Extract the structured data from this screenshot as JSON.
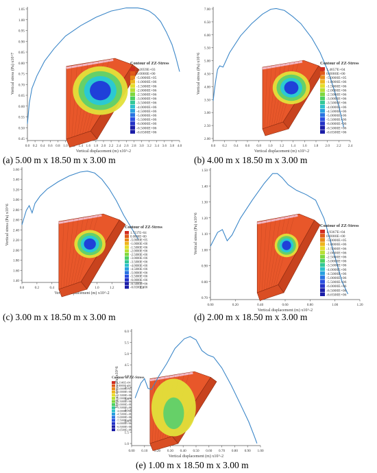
{
  "colors": {
    "curve": "#3a86c8",
    "axis": "#555555",
    "label": "#333333",
    "block_edge": "#8a2a10",
    "block_top": "#e8572a",
    "block_side": "#c8431e",
    "block_front": "#d94e24",
    "block_pink": "#f2b8c6",
    "bulb_green": "#5fd06a",
    "bulb_cyan": "#28c8d8",
    "bulb_blue": "#1f39d9",
    "bulb_yellow": "#e3e03a"
  },
  "legend_colors": [
    "#d12b1f",
    "#e05a1a",
    "#e88a1a",
    "#efb51c",
    "#e6dd2a",
    "#b8e034",
    "#7fd83e",
    "#4cd060",
    "#32c898",
    "#2ec0cc",
    "#2aa0e0",
    "#2a74e2",
    "#2a4ee0",
    "#2433c8",
    "#1c1ea8"
  ],
  "xlabel": "Vertical displacement (m) x10^-2",
  "panels": [
    {
      "caption": "(a) 5.00 m x 18.50 m x 3.00 m",
      "ylabel": "Vertical stress (Pa) x10^7",
      "legend_title": "Contour of ZZ-Stress",
      "legend_labels": [
        "2.2059E+03",
        "0.0000E+00",
        "-5.0000E+05",
        "-1.0000E+06",
        "-1.5000E+06",
        "-2.0000E+06",
        "-2.5000E+06",
        "-3.0000E+06",
        "-3.5000E+06",
        "-4.0000E+06",
        "-4.5000E+06",
        "-5.0000E+06",
        "-5.5000E+06",
        "-6.0000E+06",
        "-6.5000E+06",
        "-6.6500E+06"
      ],
      "xticks": [
        "0.0",
        "0.2",
        "0.4",
        "0.6",
        "0.8",
        "1.0",
        "1.2",
        "1.4",
        "1.6",
        "1.8",
        "2.0",
        "2.2",
        "2.4",
        "2.6",
        "2.8",
        "3.0",
        "3.2",
        "3.4",
        "3.6",
        "3.8",
        "4.0"
      ],
      "yticks": [
        "0.45",
        "0.50",
        "0.55",
        "0.60",
        "0.65",
        "0.70",
        "0.75",
        "0.80",
        "0.85",
        "0.90",
        "0.95",
        "1.00",
        "1.05"
      ]
    },
    {
      "caption": "(b) 4.00 m x 18.50 m x 3.00 m",
      "ylabel": "Vertical stress (Pa) x10^6",
      "legend_title": "Contour of ZZ-Stress",
      "legend_labels": [
        "1.4657E+04",
        "0.0000E+00",
        "-5.0000E+05",
        "-1.0000E+06",
        "-1.5000E+06",
        "-2.0000E+06",
        "-2.5000E+06",
        "-3.0000E+06",
        "-3.5000E+06",
        "-4.0000E+06",
        "-4.5000E+06",
        "-5.0000E+06",
        "-5.5000E+06",
        "-6.0000E+06",
        "-6.5000E+06",
        "-6.6500E+06"
      ],
      "xticks": [
        "0.0",
        "0.2",
        "0.4",
        "0.6",
        "0.8",
        "1.0",
        "1.2",
        "1.4",
        "1.6",
        "1.8",
        "2.0",
        "2.2",
        "2.4"
      ],
      "yticks": [
        "2.00",
        "2.50",
        "3.00",
        "3.50",
        "4.00",
        "4.50",
        "5.00",
        "5.50",
        "6.00",
        "6.50",
        "7.00"
      ]
    },
    {
      "caption": "(c) 3.00 m x 18.50 m x 3.00 m",
      "ylabel": "Vertical stress (Pa) x10^6",
      "legend_title": "Contour of ZZ-Stress",
      "legend_labels": [
        "1.7237E+04",
        "0.0000E+00",
        "-5.0000E+05",
        "-1.0000E+06",
        "-1.5000E+06",
        "-2.0000E+06",
        "-2.5000E+06",
        "-3.0000E+06",
        "-3.5000E+06",
        "-4.0000E+06",
        "-4.5000E+06",
        "-5.0000E+06",
        "-5.5000E+06",
        "-6.0000E+06",
        "-6.5000E+06",
        "-6.6500E+06"
      ],
      "xticks": [
        "0.0",
        "0.2",
        "0.4",
        "0.6",
        "0.8",
        "1.0",
        "1.2",
        "1.4",
        "1.6"
      ],
      "yticks": [
        "1.40",
        "1.60",
        "1.80",
        "2.00",
        "2.20",
        "2.40",
        "2.60",
        "2.80",
        "3.00",
        "3.20",
        "3.40",
        "3.60"
      ]
    },
    {
      "caption": "(d) 2.00 m x 18.50 m x 3.00 m",
      "ylabel": "Vertical stress (Pa) x10^6",
      "legend_title": "Contour of ZZ-Stress",
      "legend_labels": [
        "1.9367E+04",
        "0.0000E+00",
        "-5.0000E+05",
        "-1.0000E+06",
        "-1.5000E+06",
        "-2.0000E+06",
        "-2.5000E+06",
        "-3.0000E+06",
        "-3.5000E+06",
        "-4.0000E+06",
        "-4.5000E+06",
        "-5.0000E+06",
        "-5.5000E+06",
        "-6.0000E+06",
        "-6.5000E+06",
        "-6.6500E+06"
      ],
      "xticks": [
        "0.00",
        "0.20",
        "0.40",
        "0.60",
        "0.80",
        "1.00",
        "1.20"
      ],
      "yticks": [
        "0.70",
        "0.80",
        "0.90",
        "1.00",
        "1.10",
        "1.20",
        "1.30",
        "1.40",
        "1.50"
      ]
    },
    {
      "caption": "(e) 1.00 m x 18.50 m x 3.00 m",
      "ylabel": "Vertical stress (Pa) x10^6",
      "legend_title": "Contour of ZZ-Stress",
      "legend_labels": [
        "2.1146E+04",
        "0.0000E+00",
        "-5.0000E+05",
        "-1.0000E+06",
        "-1.5000E+06",
        "-2.0000E+06",
        "-2.5000E+06",
        "-3.0000E+06",
        "-3.5000E+06",
        "-4.0000E+06",
        "-4.5000E+06",
        "-5.0000E+06",
        "-5.5000E+06",
        "-6.0000E+06",
        "-6.5000E+06",
        "-6.6500E+06"
      ],
      "xticks": [
        "0.00",
        "0.10",
        "0.20",
        "0.30",
        "0.40",
        "0.50",
        "0.60",
        "0.70",
        "0.80",
        "0.90",
        "1.00"
      ],
      "yticks": [
        "1.0",
        "1.5",
        "2.0",
        "2.5",
        "3.0",
        "3.5",
        "4.0",
        "4.5",
        "5.0",
        "5.5",
        "6.0"
      ]
    }
  ],
  "chart_data": [
    {
      "type": "line",
      "title": "(a) 5.00 m x 18.50 m x 3.00 m",
      "xlabel": "Vertical displacement (m) x10^-2",
      "ylabel": "Vertical stress (Pa) x10^7",
      "xlim": [
        0.0,
        4.0
      ],
      "ylim": [
        0.42,
        1.06
      ],
      "x": [
        0.0,
        0.05,
        0.12,
        0.25,
        0.45,
        0.7,
        1.0,
        1.4,
        1.8,
        2.2,
        2.6,
        2.9,
        3.05,
        3.2,
        3.35,
        3.5,
        3.65,
        3.8,
        3.9,
        4.0
      ],
      "y": [
        0.5,
        0.6,
        0.67,
        0.73,
        0.8,
        0.86,
        0.92,
        0.97,
        1.01,
        1.04,
        1.055,
        1.055,
        1.05,
        1.04,
        1.02,
        0.99,
        0.94,
        0.88,
        0.82,
        0.75
      ]
    },
    {
      "type": "line",
      "title": "(b) 4.00 m x 18.50 m x 3.00 m",
      "xlabel": "Vertical displacement (m) x10^-2",
      "ylabel": "Vertical stress (Pa) x10^6",
      "xlim": [
        0.0,
        2.5
      ],
      "ylim": [
        1.75,
        7.3
      ],
      "x": [
        0.0,
        0.02,
        0.05,
        0.08,
        0.12,
        0.18,
        0.3,
        0.5,
        0.7,
        0.9,
        1.05,
        1.15,
        1.3,
        1.45,
        1.6,
        1.8,
        1.95,
        2.1,
        2.2,
        2.3,
        2.38
      ],
      "y": [
        3.4,
        3.8,
        4.3,
        4.7,
        4.85,
        4.8,
        5.4,
        6.1,
        6.6,
        7.0,
        7.2,
        7.23,
        7.15,
        6.9,
        6.6,
        6.0,
        5.4,
        4.6,
        3.9,
        3.1,
        2.3
      ]
    },
    {
      "type": "line",
      "title": "(c) 3.00 m x 18.50 m x 3.00 m",
      "xlabel": "Vertical displacement (m) x10^-2",
      "ylabel": "Vertical stress (Pa) x10^6",
      "xlim": [
        0.0,
        1.65
      ],
      "ylim": [
        1.3,
        3.7
      ],
      "x": [
        0.0,
        0.03,
        0.06,
        0.1,
        0.14,
        0.18,
        0.25,
        0.35,
        0.5,
        0.65,
        0.8,
        0.9,
        1.0,
        1.1,
        1.2,
        1.3,
        1.4,
        1.5,
        1.6
      ],
      "y": [
        2.5,
        2.65,
        2.8,
        2.9,
        2.75,
        2.95,
        3.1,
        3.25,
        3.4,
        3.52,
        3.6,
        3.62,
        3.58,
        3.45,
        3.25,
        3.0,
        2.7,
        2.45,
        2.2
      ]
    },
    {
      "type": "line",
      "title": "(d) 2.00 m x 18.50 m x 3.00 m",
      "xlabel": "Vertical displacement (m) x10^-2",
      "ylabel": "Vertical stress (Pa) x10^6",
      "xlim": [
        0.0,
        1.25
      ],
      "ylim": [
        0.62,
        1.56
      ],
      "x": [
        0.0,
        0.03,
        0.06,
        0.1,
        0.14,
        0.18,
        0.25,
        0.35,
        0.45,
        0.52,
        0.56,
        0.6,
        0.65,
        0.72,
        0.8,
        0.88,
        0.95,
        1.0,
        1.05,
        1.1,
        1.15
      ],
      "y": [
        1.0,
        1.05,
        1.1,
        1.12,
        1.04,
        1.08,
        1.2,
        1.33,
        1.45,
        1.52,
        1.52,
        1.49,
        1.44,
        1.4,
        1.37,
        1.33,
        1.2,
        1.05,
        0.9,
        0.75,
        0.66
      ]
    },
    {
      "type": "line",
      "title": "(e) 1.00 m x 18.50 m x 3.00 m",
      "xlabel": "Vertical displacement (m) x10^-2",
      "ylabel": "Vertical stress (Pa) x10^6",
      "xlim": [
        -0.05,
        1.05
      ],
      "ylim": [
        0.7,
        6.1
      ],
      "x": [
        -0.02,
        0.0,
        0.03,
        0.06,
        0.09,
        0.12,
        0.18,
        0.25,
        0.32,
        0.4,
        0.45,
        0.5,
        0.55,
        0.6,
        0.65,
        0.72,
        0.8,
        0.88,
        0.95,
        1.0,
        1.02
      ],
      "y": [
        2.9,
        3.2,
        3.6,
        3.8,
        3.35,
        3.3,
        3.9,
        4.5,
        5.2,
        5.65,
        5.75,
        5.6,
        5.1,
        4.9,
        4.8,
        4.3,
        3.5,
        2.6,
        1.8,
        1.1,
        0.8
      ]
    }
  ]
}
